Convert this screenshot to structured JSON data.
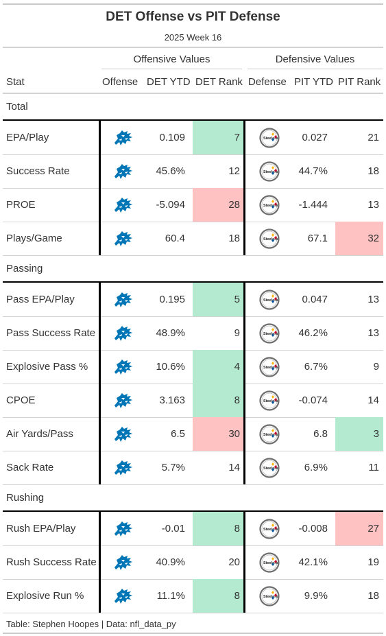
{
  "title": "DET Offense vs PIT Defense",
  "subtitle": "2025 Week 16",
  "spanners": {
    "offense": "Offensive Values",
    "defense": "Defensive Values"
  },
  "columns": {
    "stat": "Stat",
    "offense": "Offense",
    "off_ytd": "DET YTD",
    "off_rank": "DET Rank",
    "defense": "Defense",
    "def_ytd": "PIT YTD",
    "def_rank": "PIT Rank"
  },
  "colors": {
    "good": "#b3ead0",
    "bad": "#ffc2c2",
    "lions_blue": "#0076b6",
    "steelers_gold": "#ffb612"
  },
  "icons": {
    "offense": "lions-logo-icon",
    "defense": "steelers-logo-icon"
  },
  "groups": [
    {
      "label": "Total",
      "rows": [
        {
          "stat": "EPA/Play",
          "off_ytd": "0.109",
          "off_rank": "7",
          "off_tier": "good",
          "def_ytd": "0.027",
          "def_rank": "21",
          "def_tier": ""
        },
        {
          "stat": "Success Rate",
          "off_ytd": "45.6%",
          "off_rank": "12",
          "off_tier": "",
          "def_ytd": "44.7%",
          "def_rank": "18",
          "def_tier": ""
        },
        {
          "stat": "PROE",
          "off_ytd": "-5.094",
          "off_rank": "28",
          "off_tier": "bad",
          "def_ytd": "-1.444",
          "def_rank": "13",
          "def_tier": ""
        },
        {
          "stat": "Plays/Game",
          "off_ytd": "60.4",
          "off_rank": "18",
          "off_tier": "",
          "def_ytd": "67.1",
          "def_rank": "32",
          "def_tier": "bad"
        }
      ]
    },
    {
      "label": "Passing",
      "rows": [
        {
          "stat": "Pass EPA/Play",
          "off_ytd": "0.195",
          "off_rank": "5",
          "off_tier": "good",
          "def_ytd": "0.047",
          "def_rank": "13",
          "def_tier": ""
        },
        {
          "stat": "Pass Success Rate",
          "off_ytd": "48.9%",
          "off_rank": "9",
          "off_tier": "",
          "def_ytd": "46.2%",
          "def_rank": "13",
          "def_tier": ""
        },
        {
          "stat": "Explosive Pass %",
          "off_ytd": "10.6%",
          "off_rank": "4",
          "off_tier": "good",
          "def_ytd": "6.7%",
          "def_rank": "9",
          "def_tier": ""
        },
        {
          "stat": "CPOE",
          "off_ytd": "3.163",
          "off_rank": "8",
          "off_tier": "good",
          "def_ytd": "-0.074",
          "def_rank": "14",
          "def_tier": ""
        },
        {
          "stat": "Air Yards/Pass",
          "off_ytd": "6.5",
          "off_rank": "30",
          "off_tier": "bad",
          "def_ytd": "6.8",
          "def_rank": "3",
          "def_tier": "good"
        },
        {
          "stat": "Sack Rate",
          "off_ytd": "5.7%",
          "off_rank": "14",
          "off_tier": "",
          "def_ytd": "6.9%",
          "def_rank": "11",
          "def_tier": ""
        }
      ]
    },
    {
      "label": "Rushing",
      "rows": [
        {
          "stat": "Rush EPA/Play",
          "off_ytd": "-0.01",
          "off_rank": "8",
          "off_tier": "good",
          "def_ytd": "-0.008",
          "def_rank": "27",
          "def_tier": "bad"
        },
        {
          "stat": "Rush Success Rate",
          "off_ytd": "40.9%",
          "off_rank": "20",
          "off_tier": "",
          "def_ytd": "42.1%",
          "def_rank": "19",
          "def_tier": ""
        },
        {
          "stat": "Explosive Run %",
          "off_ytd": "11.1%",
          "off_rank": "8",
          "off_tier": "good",
          "def_ytd": "9.9%",
          "def_rank": "18",
          "def_tier": ""
        }
      ]
    }
  ],
  "footer": "Table: Stephen Hoopes | Data: nfl_data_py"
}
